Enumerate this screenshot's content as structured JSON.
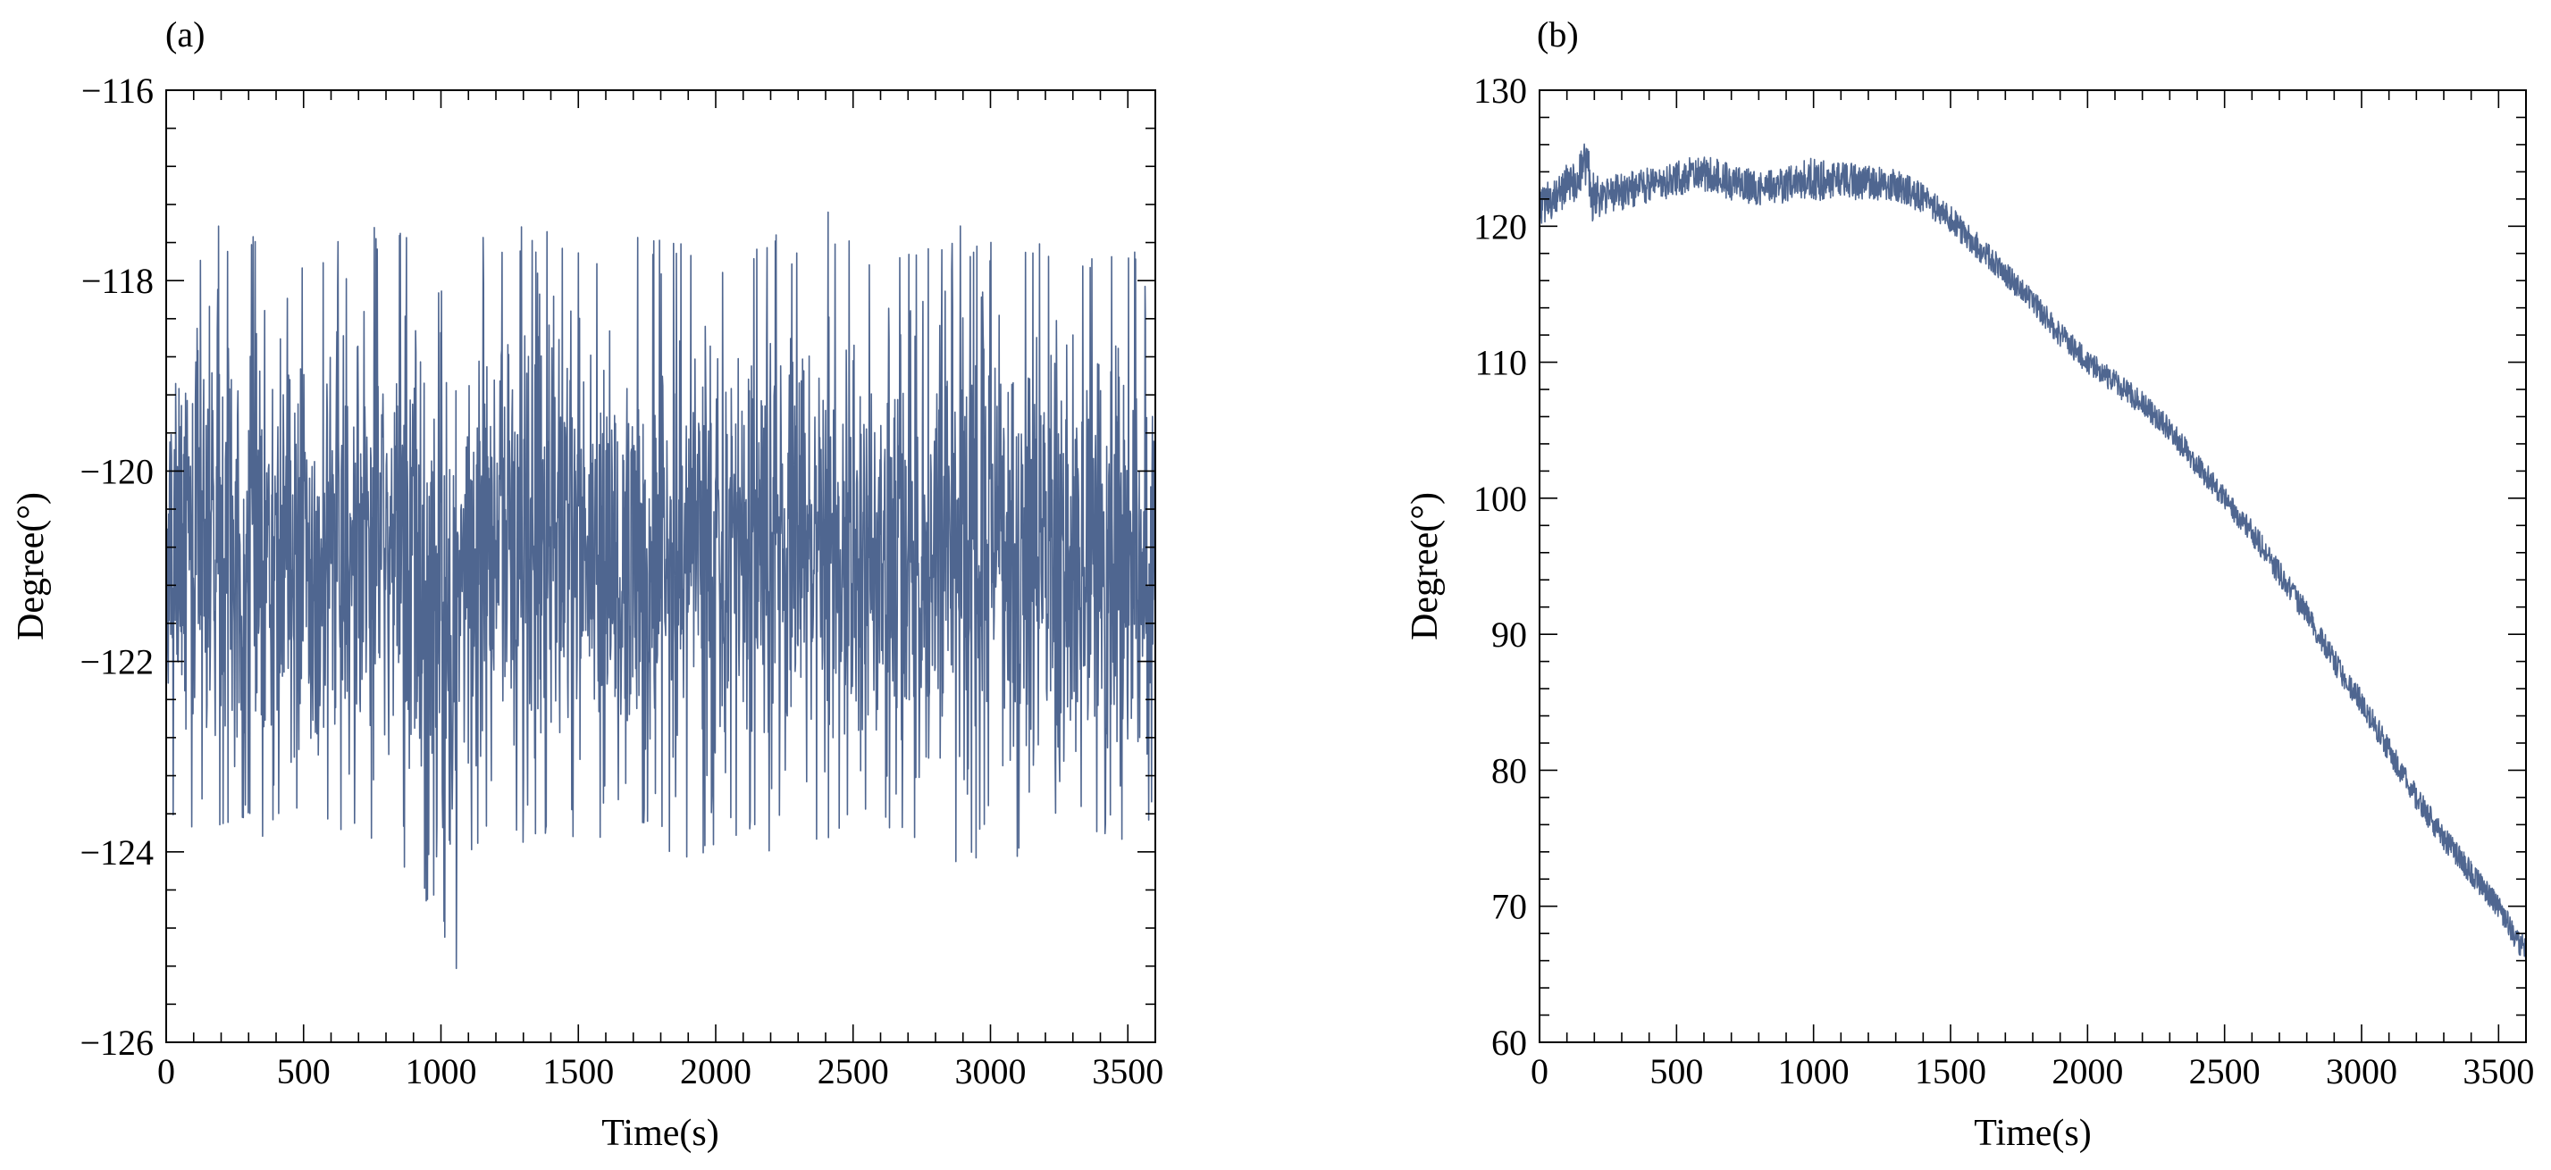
{
  "chart_data": [
    {
      "type": "line",
      "panel_label": "(a)",
      "title": "",
      "xlabel": "Time(s)",
      "ylabel": "Degree(°)",
      "xlim": [
        0,
        3600
      ],
      "ylim": [
        -126,
        -116
      ],
      "xticks": [
        0,
        500,
        1000,
        1500,
        2000,
        2500,
        3000,
        3500
      ],
      "yticks": [
        -126,
        -124,
        -122,
        -120,
        -118,
        -116
      ],
      "x_tick_labels": [
        "0",
        "500",
        "1000",
        "1500",
        "2000",
        "2500",
        "3000",
        "3500"
      ],
      "y_tick_labels": [
        "−126",
        "−124",
        "−122",
        "−120",
        "−118",
        "−116"
      ],
      "grid": false,
      "legend": "none",
      "line_color": "#4f6690",
      "series": [
        {
          "x": [
            0,
            100,
            200,
            300,
            400,
            500,
            600,
            700,
            800,
            900,
            1000,
            1040,
            1100,
            1200,
            1300,
            1400,
            1500,
            1600,
            1700,
            1800,
            1900,
            2000,
            2100,
            2200,
            2300,
            2400,
            2500,
            2600,
            2700,
            2800,
            2900,
            3000,
            3100,
            3200,
            3300,
            3400,
            3500,
            3600
          ],
          "y": [
            -120.8,
            -120.8,
            -120.8,
            -120.8,
            -120.8,
            -120.8,
            -120.8,
            -120.8,
            -120.8,
            -120.8,
            -121.2,
            -121.5,
            -120.9,
            -120.8,
            -120.8,
            -120.8,
            -120.8,
            -120.8,
            -120.8,
            -120.8,
            -120.8,
            -120.8,
            -120.8,
            -120.8,
            -120.8,
            -120.8,
            -120.8,
            -120.8,
            -120.8,
            -120.8,
            -120.8,
            -120.8,
            -120.8,
            -120.8,
            -120.8,
            -120.8,
            -120.8,
            -120.8
          ],
          "upper": [
            -117.5,
            -117.6,
            -117.4,
            -117.5,
            -117.2,
            -117.5,
            -117.6,
            -117.5,
            -117.4,
            -117.6,
            -117.9,
            -118.6,
            -117.6,
            -117.5,
            -117.4,
            -117.5,
            -117.6,
            -117.5,
            -117.4,
            -117.5,
            -117.4,
            -117.6,
            -117.5,
            -117.5,
            -117.6,
            -117.1,
            -117.5,
            -117.4,
            -117.6,
            -117.5,
            -117.4,
            -117.6,
            -117.5,
            -117.5,
            -117.6,
            -117.5,
            -117.6,
            -117.8
          ],
          "lower": [
            -123.6,
            -124.0,
            -123.7,
            -123.8,
            -123.9,
            -123.6,
            -123.8,
            -123.9,
            -124.3,
            -124.5,
            -124.6,
            -125.8,
            -124.0,
            -123.8,
            -123.9,
            -124.0,
            -123.8,
            -123.9,
            -123.8,
            -123.9,
            -124.2,
            -123.9,
            -123.8,
            -124.0,
            -123.8,
            -123.9,
            -123.7,
            -123.9,
            -123.8,
            -124.0,
            -124.3,
            -123.8,
            -124.1,
            -123.9,
            -123.7,
            -123.8,
            -123.9,
            -123.8
          ]
        }
      ]
    },
    {
      "type": "line",
      "panel_label": "(b)",
      "title": "",
      "xlabel": "Time(s)",
      "ylabel": "Degree(°)",
      "xlim": [
        0,
        3600
      ],
      "ylim": [
        60,
        130
      ],
      "xticks": [
        0,
        500,
        1000,
        1500,
        2000,
        2500,
        3000,
        3500
      ],
      "yticks": [
        60,
        70,
        80,
        90,
        100,
        110,
        120,
        130
      ],
      "x_tick_labels": [
        "0",
        "500",
        "1000",
        "1500",
        "2000",
        "2500",
        "3000",
        "3500"
      ],
      "y_tick_labels": [
        "60",
        "70",
        "80",
        "90",
        "100",
        "110",
        "120",
        "130"
      ],
      "grid": false,
      "legend": "none",
      "line_color": "#4f6690",
      "series": [
        {
          "x": [
            0,
            50,
            100,
            150,
            180,
            185,
            250,
            300,
            400,
            500,
            600,
            700,
            800,
            900,
            1000,
            1100,
            1200,
            1300,
            1400,
            1500,
            1600,
            1700,
            1800,
            1900,
            2000,
            2100,
            2200,
            2300,
            2400,
            2500,
            2600,
            2700,
            2800,
            2900,
            3000,
            3100,
            3200,
            3300,
            3400,
            3500,
            3600
          ],
          "y": [
            121.5,
            122.0,
            123.0,
            124.0,
            124.5,
            122.0,
            122.3,
            122.5,
            123.0,
            123.5,
            124.0,
            123.2,
            122.8,
            123.0,
            123.5,
            123.3,
            123.2,
            123.0,
            122.0,
            120.5,
            118.5,
            116.5,
            114.5,
            112.0,
            110.0,
            108.5,
            107.0,
            105.0,
            102.5,
            100.0,
            97.5,
            94.5,
            91.5,
            88.0,
            85.0,
            81.5,
            78.0,
            75.0,
            72.5,
            70.0,
            66.5
          ],
          "amplitude": [
            1.5,
            1.5,
            1.6,
            1.8,
            1.9,
            2.0,
            1.4,
            1.4,
            1.3,
            1.3,
            1.4,
            1.3,
            1.3,
            1.3,
            1.6,
            1.4,
            1.3,
            1.2,
            1.1,
            1.0,
            1.0,
            0.9,
            0.9,
            0.9,
            0.9,
            0.9,
            0.9,
            0.9,
            0.9,
            0.9,
            0.9,
            0.9,
            0.9,
            0.9,
            0.9,
            0.9,
            0.9,
            0.9,
            0.9,
            0.9,
            1.0
          ]
        }
      ]
    }
  ]
}
